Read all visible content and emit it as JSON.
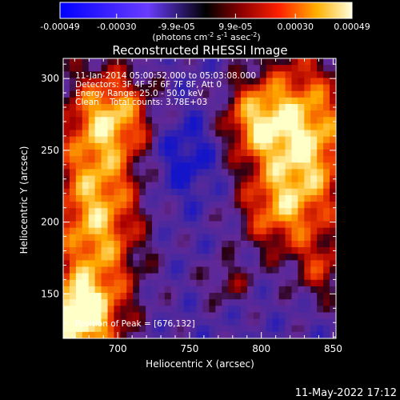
{
  "chart_data": {
    "type": "heatmap",
    "title": "Reconstructed RHESSI Image",
    "xlabel": "Heliocentric X (arcsec)",
    "ylabel": "Heliocentric Y (arcsec)",
    "xlim": [
      662,
      852
    ],
    "ylim": [
      119,
      314
    ],
    "x_ticks": [
      700,
      750,
      800,
      850
    ],
    "y_ticks": [
      150,
      200,
      250,
      300
    ],
    "colorbar": {
      "ticks": [
        "-0.00049",
        "-0.00030",
        "-9.9e-05",
        "9.9e-05",
        "0.00030",
        "0.00049"
      ],
      "tick_values": [
        -0.00049,
        -0.0003,
        -9.9e-05,
        9.9e-05,
        0.0003,
        0.00049
      ],
      "range": [
        -0.00049,
        0.00049
      ],
      "units_label": "(photons cm",
      "units_exp1": "-2",
      "units_mid": " s",
      "units_exp2": "-1",
      "units_mid2": " asec",
      "units_exp3": "-2",
      "units_end": ")"
    },
    "annotations": {
      "time_range": "11-Jan-2014 05:00:52.000 to 05:03:08.000",
      "detectors": "Detectors: 3F 4F 5F 6F 7F 8F, Att 0",
      "energy": "Energy Range: 25.0 - 50.0 keV",
      "clean": "Clean    Total counts: 3.78E+03",
      "peak": "Position of Peak = [676,132]"
    },
    "peak_position": [
      676,
      132
    ]
  },
  "footer_timestamp": "11-May-2022 17:12"
}
